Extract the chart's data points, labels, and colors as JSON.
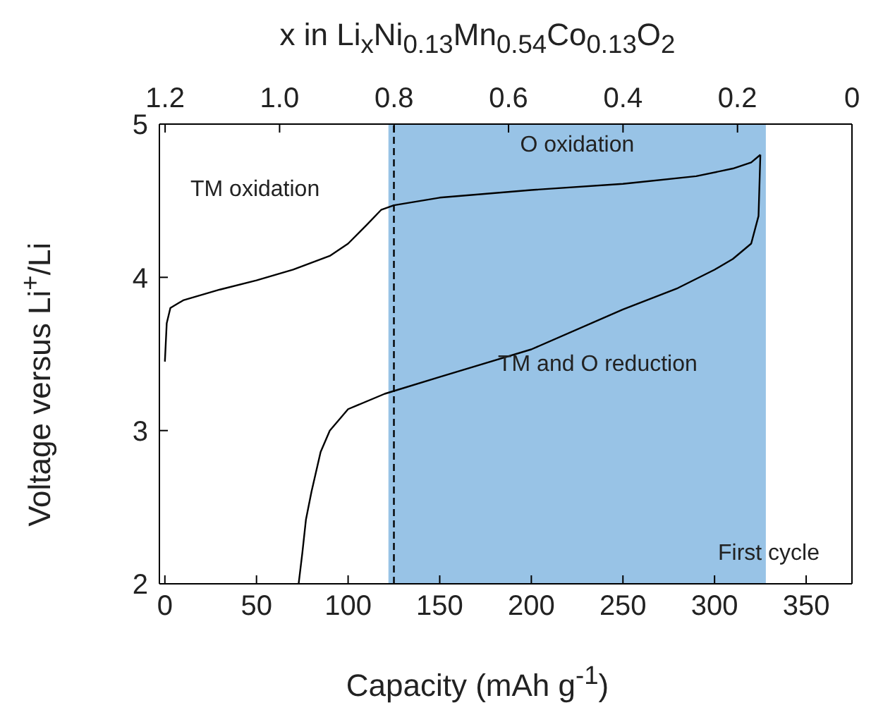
{
  "chart_data": {
    "type": "line",
    "xlabel": "Capacity (mAh g$^{-1}$)",
    "ylabel": "Voltage versus Li$^{+}$/Li",
    "x2label": "x in Li$_{x}$Ni$_{0.13}$Mn$_{0.54}$Co$_{0.13}$O$_{2}$",
    "xlim": [
      -3,
      375
    ],
    "xticks": [
      0,
      50,
      100,
      150,
      200,
      250,
      300,
      350
    ],
    "x2lim": [
      1.21,
      0
    ],
    "x2ticks": [
      1.2,
      {
        "value": 1,
        "label": "1.0"
      },
      0.8,
      0.6,
      0.4,
      0.2,
      0
    ],
    "ylim": [
      2,
      5
    ],
    "yticks": [
      2,
      3,
      4,
      5
    ],
    "series": [
      {
        "color": "#000000",
        "x": [
          0,
          1,
          3,
          10,
          30,
          50,
          70,
          90,
          100,
          110,
          118,
          125,
          150,
          200,
          250,
          290,
          310,
          320,
          325
        ],
        "values": [
          3.45,
          3.7,
          3.8,
          3.85,
          3.92,
          3.98,
          4.05,
          4.14,
          4.22,
          4.34,
          4.44,
          4.47,
          4.52,
          4.57,
          4.61,
          4.66,
          4.71,
          4.75,
          4.8
        ]
      },
      {
        "color": "#000000",
        "x": [
          325,
          324,
          320,
          310,
          300,
          280,
          250,
          200,
          150,
          120,
          100,
          90,
          85,
          80,
          77,
          75,
          73
        ],
        "values": [
          4.8,
          4.4,
          4.22,
          4.12,
          4.05,
          3.93,
          3.79,
          3.53,
          3.35,
          3.24,
          3.14,
          3.0,
          2.86,
          2.6,
          2.42,
          2.2,
          2.0
        ]
      }
    ],
    "bands": [
      {
        "axis": "x",
        "from": 122,
        "to": 328,
        "label": "O oxidation",
        "color": "#8dbde3"
      }
    ],
    "ref_lines": [
      {
        "axis": "x",
        "value": 125,
        "line_style": "dashed",
        "color": "#000000"
      }
    ],
    "annotations": [
      "TM oxidation",
      "TM and O reduction",
      "First cycle"
    ],
    "legend": false,
    "marker": "none",
    "line_style": "solid"
  }
}
